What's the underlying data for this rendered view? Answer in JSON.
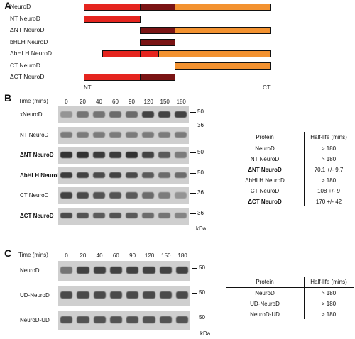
{
  "panel_a": {
    "letter": "A",
    "constructs": [
      {
        "label": "NeuroD",
        "segments": [
          {
            "start": 0,
            "end": 0.3,
            "color": "#e5251f"
          },
          {
            "start": 0.3,
            "end": 0.49,
            "color": "#7a1414"
          },
          {
            "start": 0.49,
            "end": 1.0,
            "color": "#f39230"
          }
        ]
      },
      {
        "label": "NT NeuroD",
        "segments": [
          {
            "start": 0,
            "end": 0.3,
            "color": "#e5251f"
          }
        ]
      },
      {
        "label": "ΔNT NeuroD",
        "segments": [
          {
            "start": 0.3,
            "end": 0.49,
            "color": "#7a1414"
          },
          {
            "start": 0.49,
            "end": 1.0,
            "color": "#f39230"
          }
        ]
      },
      {
        "label": "bHLH NeuroD",
        "segments": [
          {
            "start": 0.3,
            "end": 0.49,
            "color": "#7a1414"
          }
        ]
      },
      {
        "label": "ΔbHLH NeuroD",
        "segments": [
          {
            "start": 0.1,
            "end": 0.3,
            "color": "#e5251f"
          },
          {
            "start": 0.3,
            "end": 0.4,
            "color": "#e5251f"
          },
          {
            "start": 0.4,
            "end": 1.0,
            "color": "#f39230"
          }
        ]
      },
      {
        "label": "CT NeuroD",
        "segments": [
          {
            "start": 0.49,
            "end": 1.0,
            "color": "#f39230"
          }
        ]
      },
      {
        "label": "ΔCT NeuroD",
        "segments": [
          {
            "start": 0,
            "end": 0.3,
            "color": "#e5251f"
          },
          {
            "start": 0.3,
            "end": 0.49,
            "color": "#7a1414"
          }
        ]
      }
    ],
    "nt_label": "NT",
    "ct_label": "CT"
  },
  "panel_b": {
    "letter": "B",
    "time_label": "Time (mins)",
    "timepoints": [
      "0",
      "20",
      "40",
      "60",
      "90",
      "120",
      "150",
      "180"
    ],
    "blots": [
      {
        "label": "xNeuroD",
        "bold": false,
        "markers": [
          "50",
          "36"
        ],
        "intensity": [
          0.35,
          0.55,
          0.55,
          0.6,
          0.6,
          0.85,
          0.85,
          0.85
        ]
      },
      {
        "label": "NT NeuroD",
        "bold": false,
        "markers": [],
        "intensity": [
          0.5,
          0.5,
          0.5,
          0.5,
          0.5,
          0.5,
          0.5,
          0.5
        ]
      },
      {
        "label": "ΔNT NeuroD",
        "bold": true,
        "markers": [
          "50"
        ],
        "intensity": [
          0.95,
          0.95,
          0.9,
          0.9,
          0.95,
          0.85,
          0.7,
          0.5
        ]
      },
      {
        "label": "ΔbHLH NeuroD",
        "bold": true,
        "markers": [
          "50"
        ],
        "intensity": [
          0.9,
          0.85,
          0.8,
          0.85,
          0.8,
          0.7,
          0.6,
          0.6
        ]
      },
      {
        "label": "CT NeuroD",
        "bold": false,
        "markers": [
          "36"
        ],
        "intensity": [
          0.85,
          0.8,
          0.75,
          0.75,
          0.7,
          0.6,
          0.5,
          0.35
        ]
      },
      {
        "label": "ΔCT NeuroD",
        "bold": true,
        "markers": [
          "36"
        ],
        "intensity": [
          0.8,
          0.75,
          0.7,
          0.75,
          0.7,
          0.6,
          0.55,
          0.45
        ]
      }
    ],
    "kda": "kDa",
    "table": {
      "headers": [
        "Protein",
        "Half-life (mins)"
      ],
      "rows": [
        {
          "protein": "NeuroD",
          "half_life": "> 180",
          "bold": false
        },
        {
          "protein": "NT NeuroD",
          "half_life": "> 180",
          "bold": false
        },
        {
          "protein": "ΔNT NeuroD",
          "half_life": "70.1 +/- 9.7",
          "bold": true
        },
        {
          "protein": "ΔbHLH NeuroD",
          "half_life": "> 180",
          "bold": false
        },
        {
          "protein": "CT NeuroD",
          "half_life": "108 +/- 9",
          "bold": false
        },
        {
          "protein": "ΔCT NeuroD",
          "half_life": "170 +/- 42",
          "bold": true
        }
      ]
    }
  },
  "panel_c": {
    "letter": "C",
    "time_label": "Time (mins)",
    "timepoints": [
      "0",
      "20",
      "40",
      "60",
      "90",
      "120",
      "150",
      "180"
    ],
    "blots": [
      {
        "label": "NeuroD",
        "markers": [
          "50"
        ],
        "intensity": [
          0.55,
          0.85,
          0.85,
          0.85,
          0.85,
          0.85,
          0.85,
          0.85
        ]
      },
      {
        "label": "UD-NeuroD",
        "markers": [
          "50"
        ],
        "intensity": [
          0.8,
          0.8,
          0.8,
          0.8,
          0.8,
          0.8,
          0.8,
          0.8
        ]
      },
      {
        "label": "NeuroD-UD",
        "markers": [
          "50"
        ],
        "intensity": [
          0.75,
          0.75,
          0.75,
          0.75,
          0.75,
          0.75,
          0.75,
          0.75
        ]
      }
    ],
    "kda": "kDa",
    "table": {
      "headers": [
        "Protein",
        "Half-life (mins)"
      ],
      "rows": [
        {
          "protein": "NeuroD",
          "half_life": "> 180"
        },
        {
          "protein": "UD-NeuroD",
          "half_life": "> 180"
        },
        {
          "protein": "NeuroD-UD",
          "half_life": "> 180"
        }
      ]
    }
  }
}
